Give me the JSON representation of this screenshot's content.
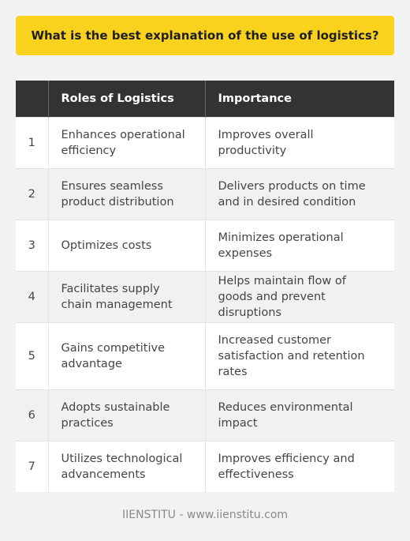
{
  "title": "What is the best explanation of the use of logistics?",
  "table": {
    "headers": [
      "",
      "Roles of Logistics",
      "Importance"
    ],
    "rows": [
      {
        "num": "1",
        "role": "Enhances operational efficiency",
        "importance": "Improves overall productivity"
      },
      {
        "num": "2",
        "role": "Ensures seamless product distribution",
        "importance": "Delivers products on time and in desired condition"
      },
      {
        "num": "3",
        "role": "Optimizes costs",
        "importance": "Minimizes operational expenses"
      },
      {
        "num": "4",
        "role": "Facilitates supply chain management",
        "importance": "Helps maintain flow of goods and prevent disruptions"
      },
      {
        "num": "5",
        "role": "Gains competitive advantage",
        "importance": "Increased customer satisfaction and retention rates"
      },
      {
        "num": "6",
        "role": "Adopts sustainable practices",
        "importance": "Reduces environmental impact"
      },
      {
        "num": "7",
        "role": "Utilizes technological advancements",
        "importance": "Improves efficiency and effectiveness"
      }
    ]
  },
  "footer": "IIENSTITU - www.iienstitu.com",
  "colors": {
    "banner": "#f8d21d",
    "header_bg": "#333333",
    "page_bg": "#f2f2f2"
  }
}
